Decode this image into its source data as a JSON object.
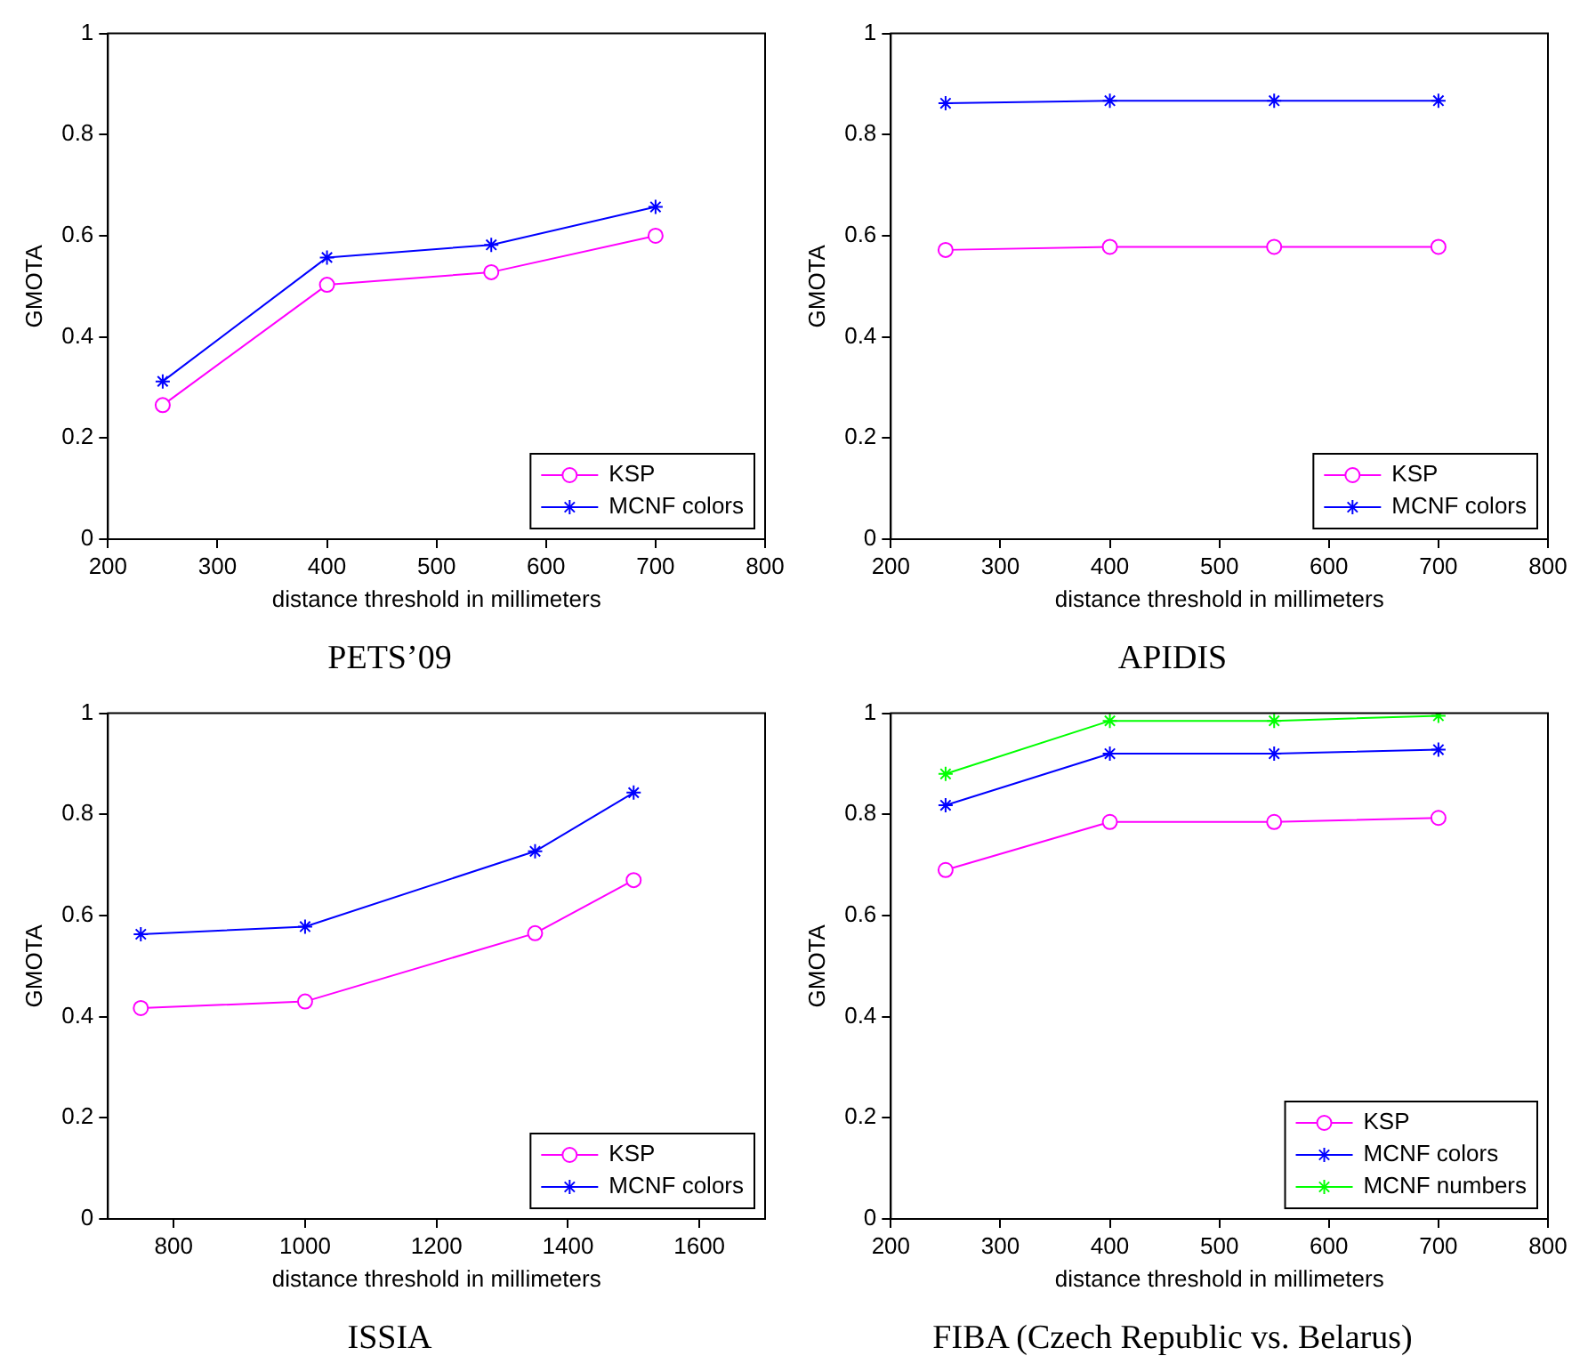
{
  "chart_data": [
    {
      "type": "line",
      "title": "PETS’09",
      "xlabel": "distance threshold in millimeters",
      "ylabel": "GMOTA",
      "x": [
        250,
        400,
        550,
        700
      ],
      "xlim": [
        200,
        800
      ],
      "xticks": [
        200,
        300,
        400,
        500,
        600,
        700,
        800
      ],
      "ylim": [
        0,
        1
      ],
      "yticks": [
        0,
        0.2,
        0.4,
        0.6,
        0.8,
        1
      ],
      "legend": "bottom right",
      "grid": false,
      "series": [
        {
          "name": "KSP",
          "color": "#ff00ff",
          "marker": "circle",
          "values": [
            0.265,
            0.503,
            0.528,
            0.6
          ]
        },
        {
          "name": "MCNF colors",
          "color": "#0000ff",
          "marker": "cross",
          "values": [
            0.312,
            0.557,
            0.582,
            0.657
          ]
        }
      ]
    },
    {
      "type": "line",
      "title": "APIDIS",
      "xlabel": "distance threshold in millimeters",
      "ylabel": "GMOTA",
      "x": [
        250,
        400,
        550,
        700
      ],
      "xlim": [
        200,
        800
      ],
      "xticks": [
        200,
        300,
        400,
        500,
        600,
        700,
        800
      ],
      "ylim": [
        0,
        1
      ],
      "yticks": [
        0,
        0.2,
        0.4,
        0.6,
        0.8,
        1
      ],
      "legend": "bottom right",
      "grid": false,
      "series": [
        {
          "name": "KSP",
          "color": "#ff00ff",
          "marker": "circle",
          "values": [
            0.572,
            0.578,
            0.578,
            0.578
          ]
        },
        {
          "name": "MCNF colors",
          "color": "#0000ff",
          "marker": "cross",
          "values": [
            0.862,
            0.867,
            0.867,
            0.867
          ]
        }
      ]
    },
    {
      "type": "line",
      "title": "ISSIA",
      "xlabel": "distance threshold in millimeters",
      "ylabel": "GMOTA",
      "x": [
        750,
        1000,
        1350,
        1500
      ],
      "xlim": [
        700,
        1700
      ],
      "xticks": [
        800,
        1000,
        1200,
        1400,
        1600
      ],
      "ylim": [
        0,
        1
      ],
      "yticks": [
        0,
        0.2,
        0.4,
        0.6,
        0.8,
        1
      ],
      "legend": "bottom right",
      "grid": false,
      "series": [
        {
          "name": "KSP",
          "color": "#ff00ff",
          "marker": "circle",
          "values": [
            0.417,
            0.43,
            0.565,
            0.67
          ]
        },
        {
          "name": "MCNF colors",
          "color": "#0000ff",
          "marker": "cross",
          "values": [
            0.563,
            0.578,
            0.727,
            0.843
          ]
        }
      ]
    },
    {
      "type": "line",
      "title": "FIBA (Czech Republic vs. Belarus)",
      "xlabel": "distance threshold in millimeters",
      "ylabel": "GMOTA",
      "x": [
        250,
        400,
        550,
        700
      ],
      "xlim": [
        200,
        800
      ],
      "xticks": [
        200,
        300,
        400,
        500,
        600,
        700,
        800
      ],
      "ylim": [
        0,
        1
      ],
      "yticks": [
        0,
        0.2,
        0.4,
        0.6,
        0.8,
        1
      ],
      "legend": "bottom right",
      "grid": false,
      "series": [
        {
          "name": "KSP",
          "color": "#ff00ff",
          "marker": "circle",
          "values": [
            0.69,
            0.785,
            0.785,
            0.793
          ]
        },
        {
          "name": "MCNF colors",
          "color": "#0000ff",
          "marker": "cross",
          "values": [
            0.818,
            0.92,
            0.92,
            0.928
          ]
        },
        {
          "name": "MCNF numbers",
          "color": "#00ff00",
          "marker": "cross",
          "values": [
            0.88,
            0.985,
            0.985,
            0.995
          ]
        }
      ]
    }
  ]
}
